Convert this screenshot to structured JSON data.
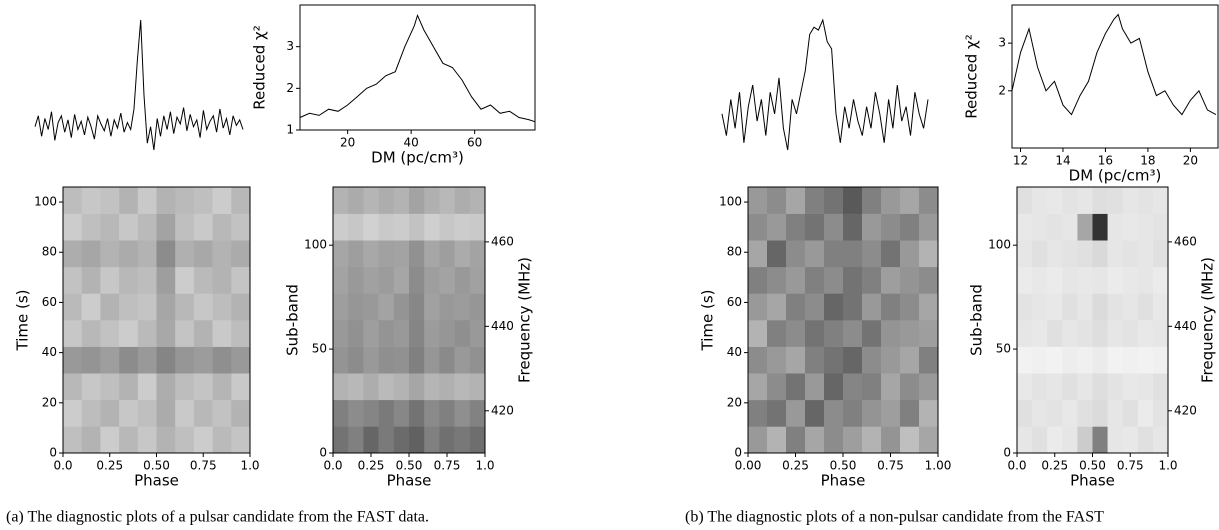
{
  "chart_data": [
    {
      "type": "profile",
      "color": "#000000",
      "values": [
        0.22,
        0.3,
        0.15,
        0.28,
        0.2,
        0.33,
        0.12,
        0.25,
        0.3,
        0.18,
        0.27,
        0.14,
        0.31,
        0.2,
        0.26,
        0.16,
        0.29,
        0.22,
        0.13,
        0.3,
        0.24,
        0.19,
        0.28,
        0.15,
        0.27,
        0.21,
        0.32,
        0.18,
        0.25,
        0.2,
        0.35,
        0.7,
        1.0,
        0.45,
        0.1,
        0.22,
        0.05,
        0.28,
        0.15,
        0.3,
        0.2,
        0.33,
        0.17,
        0.29,
        0.24,
        0.36,
        0.19,
        0.31,
        0.22,
        0.27,
        0.14,
        0.34,
        0.2,
        0.26,
        0.3,
        0.18,
        0.35,
        0.21,
        0.28,
        0.16,
        0.3,
        0.23,
        0.27,
        0.2
      ]
    },
    {
      "type": "line",
      "color": "#000000",
      "xlabel": "DM (pc/cm³)",
      "ylabel": "Reduced χ²",
      "x": [
        5,
        8,
        11,
        14,
        17,
        20,
        23,
        26,
        29,
        32,
        35,
        38,
        41,
        42,
        44,
        47,
        50,
        53,
        56,
        59,
        62,
        65,
        68,
        71,
        74,
        77,
        79
      ],
      "values": [
        1.3,
        1.4,
        1.35,
        1.5,
        1.45,
        1.6,
        1.8,
        2.0,
        2.1,
        2.3,
        2.4,
        3.0,
        3.5,
        3.75,
        3.4,
        3.0,
        2.6,
        2.5,
        2.2,
        1.8,
        1.5,
        1.6,
        1.4,
        1.45,
        1.3,
        1.25,
        1.2
      ],
      "xlim": [
        5,
        79
      ],
      "xticks": [
        20,
        40,
        60
      ],
      "ylim": [
        1,
        4
      ],
      "yticks": [
        1,
        2,
        3
      ]
    },
    {
      "type": "heatmap",
      "xlabel": "Phase",
      "ylabel": "Time (s)",
      "xlim": [
        0,
        1
      ],
      "xticks": [
        {
          "value": 0,
          "label": "0.0"
        },
        0.25,
        {
          "value": 0.5,
          "label": "0.50"
        },
        0.75,
        {
          "value": 1,
          "label": "1.0"
        }
      ],
      "ylim": [
        0,
        106
      ],
      "yticks": [
        0,
        20,
        40,
        60,
        80,
        100
      ],
      "z": [
        [
          0.25,
          0.3,
          0.2,
          0.28,
          0.22,
          0.3,
          0.25,
          0.2,
          0.27,
          0.23
        ],
        [
          0.2,
          0.26,
          0.3,
          0.22,
          0.25,
          0.33,
          0.21,
          0.28,
          0.24,
          0.3
        ],
        [
          0.28,
          0.22,
          0.25,
          0.3,
          0.2,
          0.32,
          0.26,
          0.23,
          0.29,
          0.21
        ],
        [
          0.4,
          0.42,
          0.38,
          0.45,
          0.4,
          0.48,
          0.41,
          0.39,
          0.44,
          0.4
        ],
        [
          0.22,
          0.28,
          0.24,
          0.2,
          0.27,
          0.34,
          0.23,
          0.3,
          0.21,
          0.26
        ],
        [
          0.27,
          0.2,
          0.3,
          0.25,
          0.23,
          0.35,
          0.28,
          0.22,
          0.26,
          0.3
        ],
        [
          0.24,
          0.3,
          0.22,
          0.28,
          0.26,
          0.38,
          0.2,
          0.27,
          0.3,
          0.23
        ],
        [
          0.32,
          0.35,
          0.3,
          0.33,
          0.3,
          0.45,
          0.31,
          0.34,
          0.3,
          0.33
        ],
        [
          0.2,
          0.25,
          0.28,
          0.22,
          0.27,
          0.36,
          0.25,
          0.21,
          0.28,
          0.24
        ],
        [
          0.26,
          0.22,
          0.24,
          0.3,
          0.21,
          0.3,
          0.27,
          0.25,
          0.2,
          0.28
        ]
      ]
    },
    {
      "type": "heatmap",
      "xlabel": "Phase",
      "ylabel": "Sub-band",
      "y2label": "Frequency (MHz)",
      "xlim": [
        0,
        1
      ],
      "xticks": [
        {
          "value": 0,
          "label": "0.0"
        },
        0.25,
        {
          "value": 0.5,
          "label": "0.50"
        },
        0.75,
        {
          "value": 1,
          "label": "1.0"
        }
      ],
      "ylim": [
        0,
        128
      ],
      "yticks": [
        0,
        50,
        100
      ],
      "y2lim": [
        410,
        473
      ],
      "y2ticks": [
        420,
        440,
        460
      ],
      "z": [
        [
          0.55,
          0.5,
          0.6,
          0.52,
          0.58,
          0.62,
          0.5,
          0.56,
          0.53,
          0.57
        ],
        [
          0.5,
          0.45,
          0.48,
          0.52,
          0.47,
          0.55,
          0.46,
          0.5,
          0.44,
          0.49
        ],
        [
          0.3,
          0.28,
          0.32,
          0.27,
          0.3,
          0.35,
          0.29,
          0.31,
          0.28,
          0.3
        ],
        [
          0.42,
          0.45,
          0.4,
          0.44,
          0.43,
          0.5,
          0.41,
          0.46,
          0.4,
          0.43
        ],
        [
          0.4,
          0.43,
          0.38,
          0.42,
          0.4,
          0.48,
          0.39,
          0.41,
          0.44,
          0.4
        ],
        [
          0.38,
          0.41,
          0.4,
          0.36,
          0.42,
          0.47,
          0.37,
          0.4,
          0.39,
          0.41
        ],
        [
          0.36,
          0.4,
          0.37,
          0.39,
          0.35,
          0.45,
          0.38,
          0.36,
          0.4,
          0.37
        ],
        [
          0.35,
          0.38,
          0.34,
          0.37,
          0.36,
          0.43,
          0.35,
          0.38,
          0.33,
          0.36
        ],
        [
          0.2,
          0.22,
          0.18,
          0.21,
          0.2,
          0.24,
          0.19,
          0.22,
          0.2,
          0.21
        ],
        [
          0.3,
          0.33,
          0.29,
          0.32,
          0.3,
          0.36,
          0.31,
          0.28,
          0.32,
          0.3
        ]
      ]
    },
    {
      "type": "profile",
      "color": "#000000",
      "values": [
        0.3,
        0.15,
        0.4,
        0.2,
        0.45,
        0.1,
        0.35,
        0.5,
        0.25,
        0.4,
        0.15,
        0.45,
        0.3,
        0.55,
        0.2,
        0.05,
        0.4,
        0.3,
        0.45,
        0.6,
        0.85,
        0.9,
        0.88,
        0.95,
        0.8,
        0.75,
        0.3,
        0.1,
        0.35,
        0.2,
        0.4,
        0.25,
        0.15,
        0.35,
        0.2,
        0.45,
        0.3,
        0.1,
        0.4,
        0.2,
        0.5,
        0.25,
        0.35,
        0.15,
        0.45,
        0.3,
        0.2,
        0.4
      ]
    },
    {
      "type": "line",
      "color": "#000000",
      "xlabel": "DM (pc/cm³)",
      "ylabel": "Reduced χ²",
      "x": [
        11.6,
        12.0,
        12.4,
        12.8,
        13.2,
        13.6,
        14.0,
        14.4,
        14.8,
        15.2,
        15.6,
        16.0,
        16.4,
        16.6,
        16.8,
        17.2,
        17.6,
        18.0,
        18.4,
        18.8,
        19.2,
        19.6,
        20.0,
        20.4,
        20.8,
        21.2
      ],
      "values": [
        2.0,
        2.8,
        3.3,
        2.5,
        2.0,
        2.2,
        1.7,
        1.5,
        1.9,
        2.2,
        2.8,
        3.2,
        3.5,
        3.6,
        3.3,
        3.0,
        3.1,
        2.4,
        1.9,
        2.0,
        1.7,
        1.5,
        1.8,
        2.0,
        1.6,
        1.5
      ],
      "xlim": [
        11.6,
        21.3
      ],
      "xticks": [
        12,
        14,
        16,
        18,
        20
      ],
      "ylim": [
        0.8,
        3.8
      ],
      "yticks": [
        2,
        3
      ]
    },
    {
      "type": "heatmap",
      "xlabel": "Phase",
      "ylabel": "Time (s)",
      "xlim": [
        0,
        1
      ],
      "xticks": [
        {
          "value": 0,
          "label": "0.00"
        },
        0.25,
        {
          "value": 0.5,
          "label": "0.50"
        },
        0.75,
        {
          "value": 1,
          "label": "1.00"
        }
      ],
      "ylim": [
        0,
        106
      ],
      "yticks": [
        0,
        20,
        40,
        60,
        80,
        100
      ],
      "z": [
        [
          0.4,
          0.3,
          0.5,
          0.35,
          0.45,
          0.38,
          0.3,
          0.42,
          0.25,
          0.35
        ],
        [
          0.5,
          0.55,
          0.4,
          0.6,
          0.45,
          0.5,
          0.42,
          0.38,
          0.5,
          0.3
        ],
        [
          0.35,
          0.45,
          0.55,
          0.4,
          0.6,
          0.48,
          0.5,
          0.35,
          0.45,
          0.4
        ],
        [
          0.45,
          0.4,
          0.35,
          0.5,
          0.55,
          0.6,
          0.45,
          0.4,
          0.35,
          0.5
        ],
        [
          0.3,
          0.5,
          0.45,
          0.55,
          0.5,
          0.45,
          0.55,
          0.42,
          0.4,
          0.38
        ],
        [
          0.4,
          0.35,
          0.5,
          0.45,
          0.6,
          0.55,
          0.4,
          0.5,
          0.45,
          0.35
        ],
        [
          0.5,
          0.45,
          0.4,
          0.5,
          0.45,
          0.55,
          0.5,
          0.38,
          0.42,
          0.45
        ],
        [
          0.35,
          0.6,
          0.45,
          0.4,
          0.5,
          0.5,
          0.45,
          0.55,
          0.4,
          0.3
        ],
        [
          0.45,
          0.4,
          0.5,
          0.55,
          0.45,
          0.6,
          0.4,
          0.45,
          0.5,
          0.4
        ],
        [
          0.4,
          0.45,
          0.35,
          0.5,
          0.55,
          0.65,
          0.5,
          0.4,
          0.35,
          0.45
        ]
      ]
    },
    {
      "type": "heatmap",
      "xlabel": "Phase",
      "ylabel": "Sub-band",
      "y2label": "Frequency (MHz)",
      "xlim": [
        0,
        1
      ],
      "xticks": [
        {
          "value": 0,
          "label": "0.0"
        },
        0.25,
        {
          "value": 0.5,
          "label": "0.50"
        },
        0.75,
        {
          "value": 1,
          "label": "1.0"
        }
      ],
      "ylim": [
        0,
        128
      ],
      "yticks": [
        0,
        50,
        100
      ],
      "y2lim": [
        410,
        473
      ],
      "y2ticks": [
        420,
        440,
        460
      ],
      "z": [
        [
          0.1,
          0.12,
          0.08,
          0.1,
          0.2,
          0.5,
          0.1,
          0.09,
          0.12,
          0.1
        ],
        [
          0.12,
          0.1,
          0.11,
          0.09,
          0.12,
          0.14,
          0.1,
          0.12,
          0.08,
          0.11
        ],
        [
          0.09,
          0.11,
          0.1,
          0.12,
          0.1,
          0.13,
          0.11,
          0.09,
          0.1,
          0.12
        ],
        [
          0.05,
          0.06,
          0.05,
          0.07,
          0.06,
          0.08,
          0.05,
          0.06,
          0.05,
          0.06
        ],
        [
          0.1,
          0.09,
          0.12,
          0.1,
          0.11,
          0.13,
          0.1,
          0.11,
          0.09,
          0.1
        ],
        [
          0.11,
          0.1,
          0.09,
          0.12,
          0.1,
          0.14,
          0.11,
          0.1,
          0.12,
          0.09
        ],
        [
          0.08,
          0.09,
          0.08,
          0.1,
          0.09,
          0.1,
          0.08,
          0.09,
          0.1,
          0.08
        ],
        [
          0.1,
          0.12,
          0.1,
          0.11,
          0.12,
          0.15,
          0.1,
          0.11,
          0.1,
          0.12
        ],
        [
          0.09,
          0.1,
          0.11,
          0.1,
          0.35,
          0.8,
          0.1,
          0.09,
          0.1,
          0.11
        ],
        [
          0.12,
          0.1,
          0.09,
          0.11,
          0.1,
          0.13,
          0.12,
          0.1,
          0.11,
          0.1
        ]
      ]
    }
  ],
  "captions": [
    "(a) The diagnostic plots of a pulsar candidate from the FAST data.",
    "(b) The diagnostic plots of a non-pulsar candidate from the FAST"
  ]
}
